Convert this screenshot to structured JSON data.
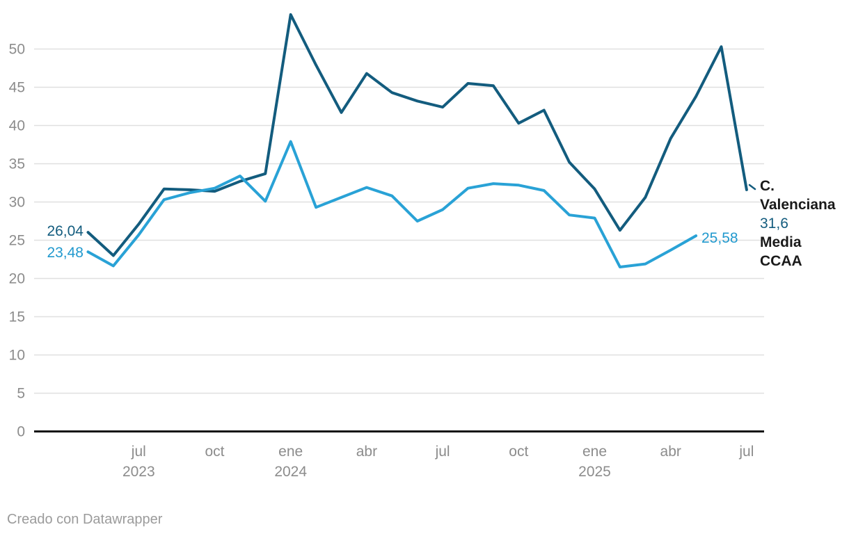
{
  "chart_data": {
    "type": "line",
    "x": [
      "may 2023",
      "jun 2023",
      "jul 2023",
      "ago 2023",
      "sep 2023",
      "oct 2023",
      "nov 2023",
      "dic 2023",
      "ene 2024",
      "feb 2024",
      "mar 2024",
      "abr 2024",
      "may 2024",
      "jun 2024",
      "jul 2024",
      "ago 2024",
      "sep 2024",
      "oct 2024",
      "nov 2024",
      "dic 2024",
      "ene 2025",
      "feb 2025",
      "mar 2025",
      "abr 2025",
      "may 2025",
      "jun 2025",
      "jul 2025"
    ],
    "series": [
      {
        "name": "C. Valenciana",
        "color": "#135C7E",
        "values": [
          26.04,
          23.0,
          27.1,
          31.7,
          31.6,
          31.4,
          32.7,
          33.7,
          54.5,
          47.9,
          41.7,
          46.8,
          44.3,
          43.2,
          42.4,
          45.5,
          45.2,
          40.3,
          42.0,
          35.2,
          31.7,
          26.3,
          30.6,
          38.3,
          43.8,
          50.3,
          31.6
        ]
      },
      {
        "name": "Media CCAA",
        "color": "#29A2D6",
        "values": [
          23.48,
          21.65,
          25.7,
          30.3,
          31.2,
          31.8,
          33.4,
          30.1,
          37.9,
          29.3,
          30.6,
          31.9,
          30.8,
          27.5,
          29.0,
          31.8,
          32.4,
          32.2,
          31.5,
          28.3,
          27.9,
          21.5,
          21.9,
          23.7,
          25.58,
          null,
          null
        ]
      }
    ],
    "ylim": [
      0,
      55
    ],
    "yticks": [
      0,
      5,
      10,
      15,
      20,
      25,
      30,
      35,
      40,
      45,
      50
    ],
    "xticks": [
      {
        "index": 2,
        "label": "jul",
        "year": "2023"
      },
      {
        "index": 5,
        "label": "oct",
        "year": ""
      },
      {
        "index": 8,
        "label": "ene",
        "year": "2024"
      },
      {
        "index": 11,
        "label": "abr",
        "year": ""
      },
      {
        "index": 14,
        "label": "jul",
        "year": ""
      },
      {
        "index": 17,
        "label": "oct",
        "year": ""
      },
      {
        "index": 20,
        "label": "ene",
        "year": "2025"
      },
      {
        "index": 23,
        "label": "abr",
        "year": ""
      },
      {
        "index": 26,
        "label": "jul",
        "year": ""
      }
    ],
    "grid": true,
    "legend_position": "direct-labels-right"
  },
  "annotations": {
    "start_value_c_valenciana": "26,04",
    "start_value_media_ccaa": "23,48",
    "end_value_media_ccaa": "25,58",
    "end_value_c_valenciana": "31,6",
    "series1_label_line1": "C.",
    "series1_label_line2": "Valenciana",
    "series2_label_line1": "Media",
    "series2_label_line2": "CCAA"
  },
  "colors": {
    "c_valenciana": "#135C7E",
    "media_ccaa": "#29A2D6",
    "gridline": "#e0e0e0",
    "axis_baseline": "#111111",
    "axis_text": "#8c8c8c",
    "label_text": "#1a1a1a",
    "credit_text": "#9b9b9b"
  },
  "footer": {
    "credit": "Creado con Datawrapper"
  }
}
